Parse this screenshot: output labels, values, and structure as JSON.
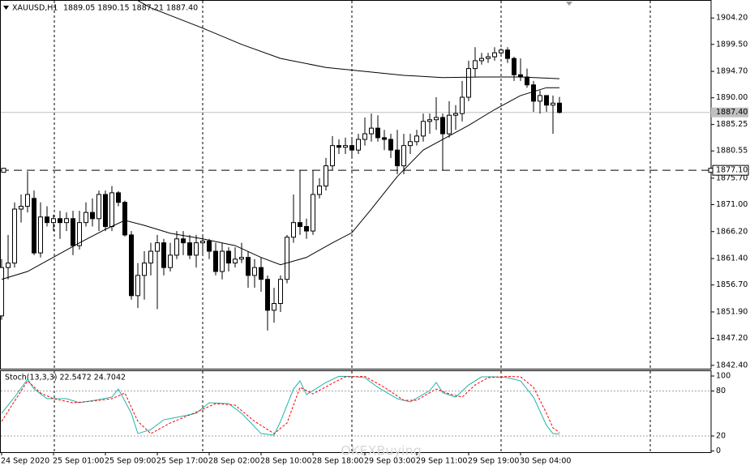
{
  "header": {
    "symbol": "XAUUSD,H1",
    "ohlc": "1889.05 1890.15 1887.21 1887.40"
  },
  "watermark": "OKEXBuying",
  "chart_data": [
    {
      "type": "candlestick",
      "categories": [
        "24 Sep 2020",
        null,
        null,
        null,
        null,
        null,
        null,
        null,
        "25 Sep 01:00",
        null,
        null,
        null,
        null,
        null,
        null,
        null,
        "25 Sep 09:00",
        null,
        null,
        null,
        null,
        null,
        null,
        null,
        "25 Sep 17:00",
        null,
        null,
        null,
        null,
        null,
        null,
        null,
        "28 Sep 02:00",
        null,
        null,
        null,
        null,
        null,
        null,
        null,
        "28 Sep 10:00",
        null,
        null,
        null,
        null,
        null,
        null,
        null,
        "28 Sep 18:00",
        null,
        null,
        null,
        null,
        null,
        null,
        null,
        "29 Sep 03:00",
        null,
        null,
        null,
        null,
        null,
        null,
        null,
        "29 Sep 11:00",
        null,
        null,
        null,
        null,
        null,
        null,
        null,
        "29 Sep 19:00",
        null,
        null,
        null,
        null,
        null,
        null,
        null,
        "30 Sep 04:00",
        null,
        null,
        null,
        null,
        null,
        null
      ],
      "open": [
        1851.2,
        1859.8,
        1860.6,
        1870.2,
        1870.7,
        1872.1,
        1862.4,
        1868.8,
        1867.8,
        1868.5,
        1867.8,
        1868.5,
        1863.7,
        1867.8,
        1869.6,
        1868.5,
        1872.8,
        1867.1,
        1873.1,
        1871.4,
        1865.6,
        1854.8,
        1858.4,
        1860.6,
        1862.7,
        1864.2,
        1859.8,
        1862.0,
        1864.9,
        1864.2,
        1862.0,
        1864.2,
        1864.5,
        1862.7,
        1859.1,
        1862.7,
        1860.6,
        1861.3,
        1861.6,
        1858.4,
        1859.8,
        1857.7,
        1852.2,
        1853.4,
        1857.7,
        1865.2,
        1867.8,
        1867.1,
        1866.3,
        1872.8,
        1874.3,
        1877.9,
        1881.5,
        1881.2,
        1881.5,
        1880.7,
        1882.6,
        1883.6,
        1884.6,
        1882.9,
        1882.6,
        1880.7,
        1877.9,
        1881.5,
        1882.2,
        1883.2,
        1885.8,
        1886.1,
        1886.5,
        1883.6,
        1886.9,
        1887.2,
        1890.1,
        1895.2,
        1896.6,
        1897.0,
        1897.3,
        1898.0,
        1898.5,
        1897.0,
        1894.1,
        1893.7,
        1892.3,
        1889.4,
        1890.4,
        1888.7,
        1889.05
      ],
      "high": [
        1861.3,
        1865.6,
        1871.4,
        1872.8,
        1876.9,
        1873.5,
        1871.4,
        1870.7,
        1869.2,
        1869.9,
        1869.6,
        1869.9,
        1869.9,
        1871.4,
        1872.1,
        1873.5,
        1873.5,
        1874.3,
        1873.4,
        1871.7,
        1866.3,
        1860.6,
        1862.7,
        1864.2,
        1865.6,
        1864.9,
        1864.2,
        1866.3,
        1866.3,
        1865.6,
        1865.6,
        1865.6,
        1864.9,
        1864.2,
        1864.2,
        1863.4,
        1863.4,
        1864.2,
        1862.7,
        1861.3,
        1861.6,
        1858.4,
        1856.2,
        1858.4,
        1865.6,
        1872.8,
        1877.1,
        1868.5,
        1877.1,
        1875.7,
        1879.3,
        1883.2,
        1882.6,
        1882.9,
        1882.6,
        1883.6,
        1886.5,
        1887.2,
        1886.9,
        1884.3,
        1883.6,
        1884.3,
        1883.6,
        1883.6,
        1884.3,
        1887.2,
        1887.2,
        1890.1,
        1887.2,
        1889.4,
        1888.7,
        1893.0,
        1896.6,
        1899.0,
        1898.0,
        1898.0,
        1899.0,
        1898.8,
        1899.0,
        1897.3,
        1897.0,
        1895.2,
        1893.0,
        1891.3,
        1890.4,
        1890.4,
        1890.15
      ],
      "low": [
        1850.5,
        1857.7,
        1859.8,
        1867.8,
        1869.6,
        1862.0,
        1861.6,
        1867.1,
        1866.3,
        1864.9,
        1866.3,
        1862.0,
        1863.0,
        1867.1,
        1867.1,
        1866.3,
        1866.3,
        1866.3,
        1870.7,
        1865.3,
        1854.1,
        1852.6,
        1854.1,
        1858.4,
        1852.4,
        1858.4,
        1859.1,
        1861.3,
        1862.0,
        1861.3,
        1859.8,
        1862.0,
        1861.3,
        1858.4,
        1857.7,
        1859.1,
        1859.8,
        1860.6,
        1856.2,
        1856.2,
        1855.5,
        1848.6,
        1850.0,
        1851.9,
        1857.0,
        1864.2,
        1865.6,
        1864.9,
        1865.6,
        1872.1,
        1873.5,
        1877.1,
        1880.0,
        1880.0,
        1879.3,
        1880.0,
        1881.5,
        1882.2,
        1882.2,
        1880.7,
        1879.3,
        1876.4,
        1876.4,
        1880.0,
        1881.5,
        1882.2,
        1883.6,
        1884.3,
        1877.1,
        1882.9,
        1884.3,
        1885.8,
        1889.4,
        1893.7,
        1895.9,
        1896.2,
        1896.6,
        1897.3,
        1896.2,
        1893.0,
        1893.0,
        1891.8,
        1887.5,
        1887.2,
        1887.5,
        1883.6,
        1887.21
      ],
      "close": [
        1859.8,
        1860.6,
        1870.2,
        1870.7,
        1872.8,
        1862.4,
        1868.8,
        1867.8,
        1868.5,
        1867.8,
        1868.5,
        1863.7,
        1867.8,
        1869.6,
        1868.5,
        1872.8,
        1867.1,
        1873.1,
        1871.4,
        1865.6,
        1854.8,
        1858.4,
        1860.6,
        1862.7,
        1864.2,
        1859.8,
        1862.0,
        1864.9,
        1864.2,
        1862.0,
        1864.2,
        1864.5,
        1862.7,
        1859.1,
        1862.7,
        1860.6,
        1861.3,
        1861.6,
        1858.4,
        1859.8,
        1857.7,
        1852.2,
        1853.4,
        1857.7,
        1865.2,
        1867.8,
        1867.1,
        1866.3,
        1872.8,
        1874.3,
        1877.9,
        1881.5,
        1881.2,
        1881.5,
        1880.7,
        1882.6,
        1883.6,
        1884.6,
        1882.9,
        1882.6,
        1880.7,
        1877.9,
        1881.5,
        1882.2,
        1883.2,
        1885.8,
        1886.1,
        1886.5,
        1883.6,
        1886.9,
        1887.2,
        1890.1,
        1895.2,
        1896.6,
        1897.0,
        1897.3,
        1898.0,
        1898.5,
        1897.0,
        1894.1,
        1893.7,
        1892.3,
        1889.4,
        1890.4,
        1888.7,
        1889.05,
        1887.4
      ],
      "up_color": "#ffffff",
      "down_color": "#000000",
      "ylim": [
        1841.8,
        1907.4
      ],
      "yticks": [
        {
          "value": 1904.2,
          "label": "1904.20"
        },
        {
          "value": 1899.5,
          "label": "1899.50"
        },
        {
          "value": 1894.7,
          "label": "1894.70"
        },
        {
          "value": 1890.0,
          "label": "1890.00"
        },
        1885.25,
        1880.55,
        {
          "value": 1875.7,
          "label": "1875.70"
        },
        {
          "value": 1871.0,
          "label": "1871.00"
        },
        {
          "value": 1866.2,
          "label": "1866.20"
        },
        {
          "value": 1861.4,
          "label": "1861.40"
        },
        {
          "value": 1856.7,
          "label": "1856.70"
        },
        {
          "value": 1851.9,
          "label": "1851.90"
        },
        {
          "value": 1847.2,
          "label": "1847.20"
        },
        {
          "value": 1842.4,
          "label": "1842.40"
        }
      ],
      "lines": [
        {
          "color": "#000000",
          "x": [
            0,
            4,
            7,
            12,
            16,
            19,
            22,
            26,
            31,
            36,
            40,
            43,
            47,
            51,
            54,
            57,
            61,
            65,
            68,
            72,
            76,
            80,
            84,
            86
          ],
          "values": [
            1857.7,
            1859.1,
            1861.0,
            1864.2,
            1866.6,
            1868.2,
            1867.3,
            1865.9,
            1864.9,
            1863.7,
            1861.6,
            1860.3,
            1861.6,
            1864.2,
            1866.0,
            1870.2,
            1876.0,
            1880.7,
            1882.6,
            1885.1,
            1887.9,
            1890.4,
            1891.8,
            1891.8
          ]
        },
        {
          "color": "#000000",
          "x": [
            21,
            23,
            31,
            37,
            43,
            50,
            56,
            62,
            68,
            74,
            80,
            86
          ],
          "values": [
            1907.3,
            1906.0,
            1902.4,
            1899.5,
            1897.0,
            1895.4,
            1894.7,
            1894.0,
            1893.6,
            1893.7,
            1893.7,
            1893.4
          ]
        }
      ],
      "bid": {
        "value": 1887.4,
        "label": "1887.40"
      },
      "hline": {
        "value": 1877.1,
        "label": "1877.10"
      }
    },
    {
      "type": "line",
      "title": "Stoch(13,3,3) 22.5472 24.7042",
      "ylim": [
        -1.6,
        106.5
      ],
      "yticks": [
        100,
        80,
        20,
        0
      ],
      "levels": [
        80,
        20
      ],
      "series": [
        {
          "color": "#20b2aa",
          "x": [
            0,
            2,
            4,
            5,
            7,
            10,
            12,
            15,
            17,
            18,
            20,
            21,
            23,
            25,
            27,
            30,
            32,
            35,
            37,
            40,
            42,
            43,
            45,
            46,
            47,
            50,
            52,
            54,
            56,
            58,
            61,
            63,
            66,
            67,
            68,
            70,
            72,
            74,
            76,
            78,
            80,
            82,
            84,
            85,
            86
          ],
          "values": [
            50.3,
            71.9,
            95.7,
            82.7,
            69.7,
            69.7,
            64.3,
            68.6,
            71.9,
            82.7,
            50.3,
            23.2,
            28.6,
            41.6,
            44.9,
            50.3,
            64.3,
            63.2,
            50.3,
            23.2,
            21.1,
            39.5,
            82.7,
            93.5,
            75.1,
            91.4,
            99.6,
            99.5,
            97.8,
            84.9,
            69.7,
            65.4,
            80.5,
            91.4,
            77.8,
            71.9,
            88.1,
            98.9,
            98.9,
            97.8,
            93.5,
            71.9,
            34.1,
            23.2,
            22.5472
          ]
        },
        {
          "color": "#ff0000",
          "dash": true,
          "x": [
            0,
            2,
            4,
            6,
            8,
            11,
            14,
            17,
            19,
            21,
            23,
            26,
            29,
            33,
            36,
            39,
            42,
            44,
            46,
            48,
            51,
            53,
            56,
            59,
            62,
            64,
            67,
            69,
            71,
            73,
            75,
            78,
            80,
            82,
            84,
            85,
            86
          ],
          "values": [
            39.5,
            66.5,
            93.5,
            77.3,
            69.7,
            64.3,
            66.5,
            69.7,
            77.3,
            39.5,
            23.2,
            37.3,
            48.1,
            63.2,
            61.1,
            39.5,
            23.2,
            37.3,
            84.9,
            76.2,
            90.3,
            98.9,
            99.5,
            84.9,
            67.6,
            67.6,
            82.7,
            76.2,
            71.9,
            88.1,
            97.8,
            99.5,
            98.9,
            84.9,
            50.3,
            30.8,
            24.7042
          ]
        }
      ]
    }
  ]
}
